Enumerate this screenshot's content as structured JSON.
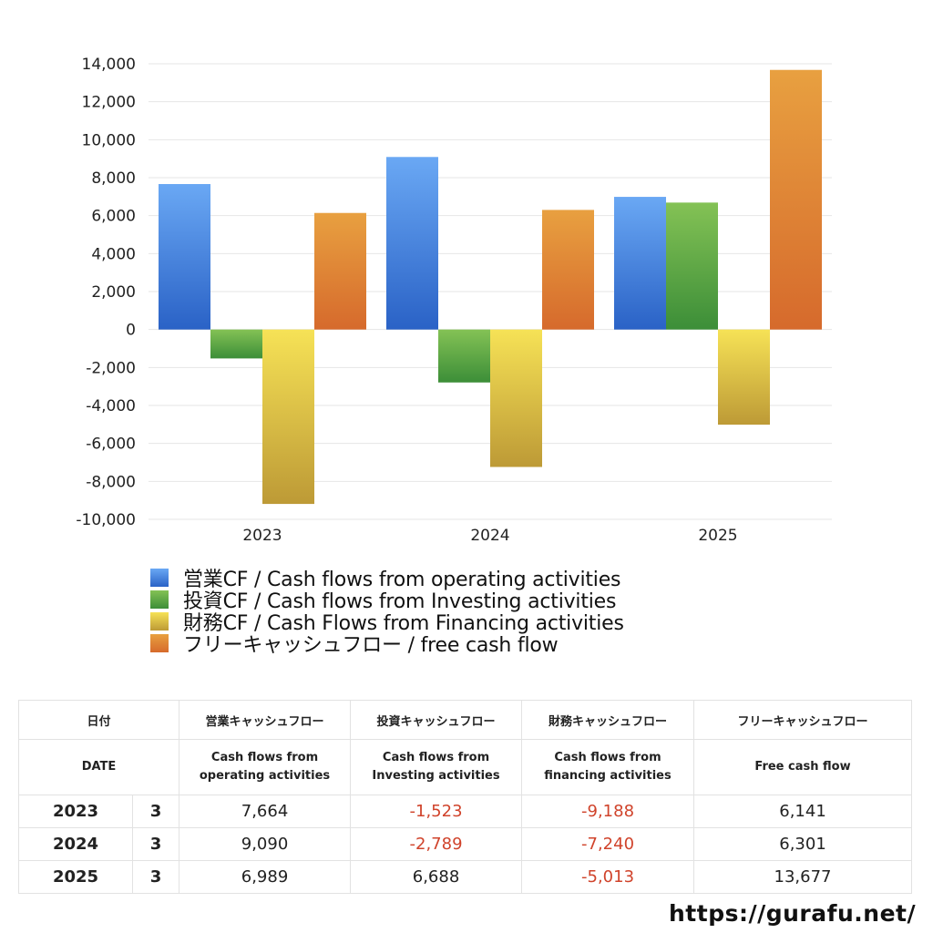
{
  "chart_data": {
    "type": "bar",
    "categories": [
      "2023",
      "2024",
      "2025"
    ],
    "ylim": [
      -10000,
      14000
    ],
    "yticks": [
      14000,
      12000,
      10000,
      8000,
      6000,
      4000,
      2000,
      0,
      -2000,
      -4000,
      -6000,
      -8000,
      -10000
    ],
    "ytick_labels": [
      "14,000",
      "12,000",
      "10,000",
      "8,000",
      "6,000",
      "4,000",
      "2,000",
      "0",
      "-2,000",
      "-4,000",
      "-6,000",
      "-8,000",
      "-10,000"
    ],
    "grid": true,
    "legend_position": "bottom-left",
    "series": [
      {
        "name": "営業CF / Cash flows from operating activities",
        "values": [
          7664,
          9090,
          6989
        ],
        "color_top": "#6aa8f4",
        "color_bottom": "#2a62c6"
      },
      {
        "name": "投資CF / Cash flows from Investing activities",
        "values": [
          -1523,
          -2789,
          6688
        ],
        "color_top": "#84c255",
        "color_bottom": "#3c8e38"
      },
      {
        "name": "財務CF / Cash Flows from Financing activities",
        "values": [
          -9188,
          -7240,
          -5013
        ],
        "color_top": "#f6e256",
        "color_bottom": "#bd9a36"
      },
      {
        "name": "フリーキャッシュフロー / free cash flow",
        "values": [
          6141,
          6301,
          13677
        ],
        "color_top": "#e8a040",
        "color_bottom": "#d66a2c"
      }
    ]
  },
  "table": {
    "header_jp": [
      "日付",
      "営業キャッシュフロー",
      "投資キャッシュフロー",
      "財務キャッシュフロー",
      "フリーキャッシュフロー"
    ],
    "header_en": [
      "DATE",
      "Cash flows from operating activities",
      "Cash flows from Investing activities",
      "Cash flows from financing activities",
      "Free cash flow"
    ],
    "header_en_lines": [
      [
        "DATE"
      ],
      [
        "Cash flows from",
        "operating activities"
      ],
      [
        "Cash flows from",
        "Investing activities"
      ],
      [
        "Cash flows from",
        "financing activities"
      ],
      [
        "Free cash flow"
      ]
    ],
    "rows": [
      {
        "year": "2023",
        "month": "3",
        "operating": "7,664",
        "investing": "-1,523",
        "financing": "-9,188",
        "free": "6,141"
      },
      {
        "year": "2024",
        "month": "3",
        "operating": "9,090",
        "investing": "-2,789",
        "financing": "-7,240",
        "free": "6,301"
      },
      {
        "year": "2025",
        "month": "3",
        "operating": "6,989",
        "investing": "6,688",
        "financing": "-5,013",
        "free": "13,677"
      }
    ]
  },
  "footer": {
    "url": "https://gurafu.net/"
  }
}
